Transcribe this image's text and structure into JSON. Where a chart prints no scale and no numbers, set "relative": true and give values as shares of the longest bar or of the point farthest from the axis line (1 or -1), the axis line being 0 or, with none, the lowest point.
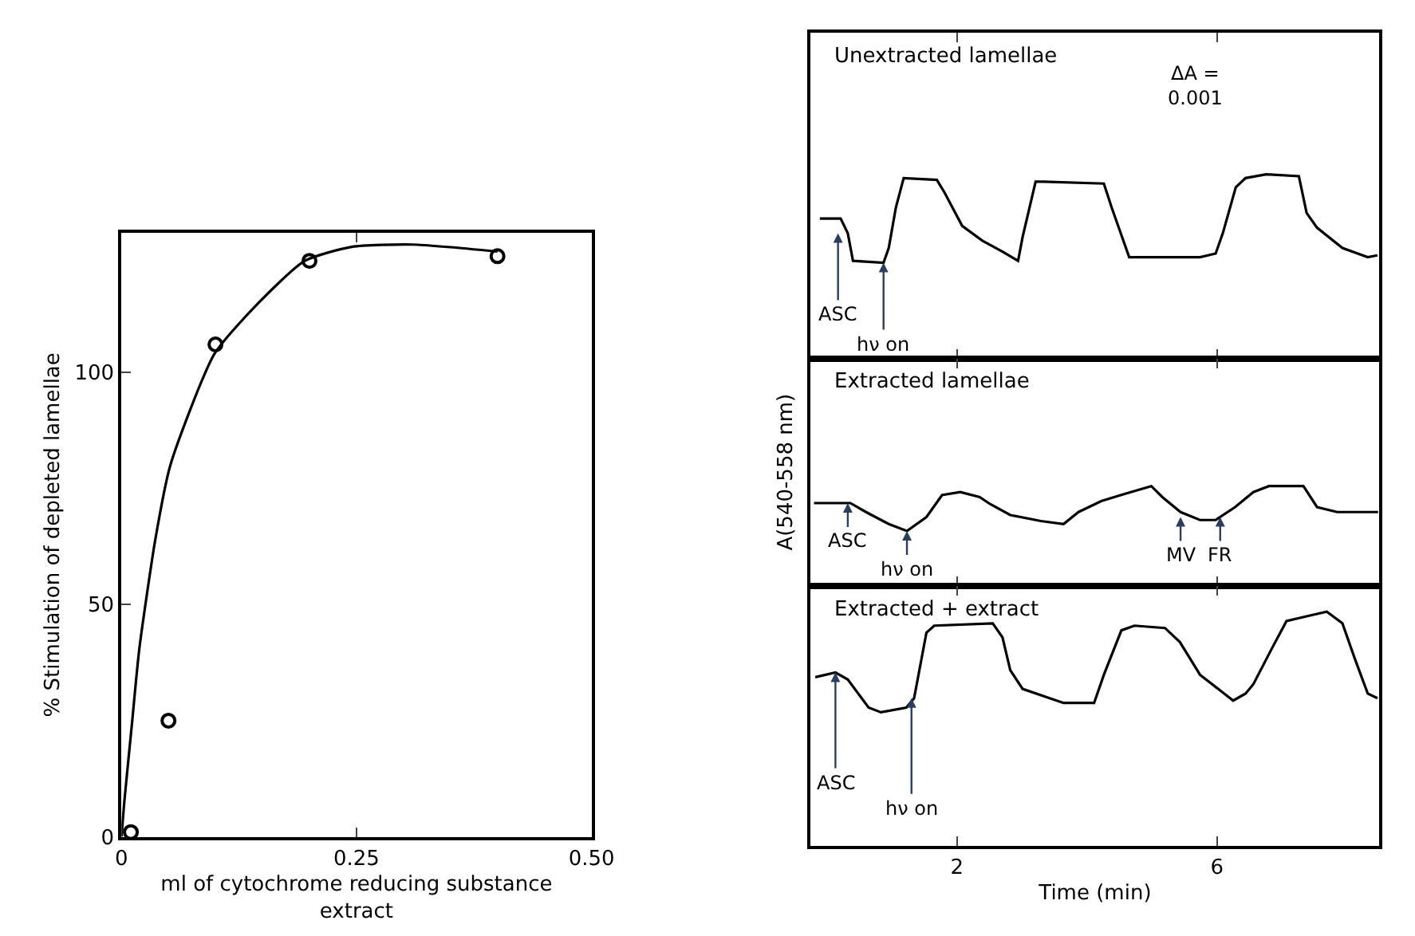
{
  "chart_data": [
    {
      "type": "scatter",
      "xlabel": "ml of cytochrome reducing substance extract",
      "ylabel": "% Stimulation of depleted lamellae",
      "xlim": [
        0,
        0.5
      ],
      "ylim": [
        0,
        130
      ],
      "xticks": [
        0,
        0.25,
        {
          "value": 0.5,
          "label": "0.50"
        }
      ],
      "yticks": [
        0,
        50,
        100
      ],
      "series": [
        {
          "type": "scatter",
          "marker": "circle",
          "color": "#000000",
          "x": [
            0.01,
            0.05,
            0.1,
            0.2,
            0.4
          ],
          "values": [
            1,
            25,
            106,
            124,
            125
          ]
        },
        {
          "type": "line",
          "marker": "none",
          "color": "#000000",
          "x": [
            0,
            0.003,
            0.011,
            0.019,
            0.036,
            0.052,
            0.099,
            0.146,
            0.195,
            0.245,
            0.31,
            0.4
          ],
          "values": [
            0,
            7.5,
            24,
            40.5,
            64,
            80,
            104,
            115,
            124,
            127,
            127.5,
            126
          ]
        }
      ]
    },
    {
      "type": "line",
      "relative": true,
      "title": "Unextracted lamellae",
      "xlim": [
        -0.25,
        8.5
      ],
      "xticks": [
        {
          "value": 2,
          "label": null
        },
        {
          "value": 6,
          "label": null
        }
      ],
      "tick_labels": false,
      "annotations": [
        "ΔA =\n0.001",
        {
          "text": "ASC",
          "x": 0.17,
          "y": 0.68
        },
        {
          "text": "hν on",
          "x": 0.87,
          "y": 0.52
        }
      ],
      "series": [
        {
          "color": "#000000",
          "x": [
            -0.11,
            0.21,
            0.32,
            0.4,
            0.87,
            0.95,
            1.06,
            1.18,
            1.69,
            1.81,
            2.08,
            2.39,
            2.7,
            2.94,
            3.01,
            3.21,
            3.33,
            4.26,
            4.38,
            4.46,
            4.65,
            5.2,
            5.74,
            5.98,
            6.09,
            6.29,
            6.44,
            6.76,
            7.26,
            7.38,
            7.54,
            7.93,
            8.32,
            8.47
          ],
          "values": [
            0.76,
            0.76,
            0.68,
            0.53,
            0.52,
            0.6,
            0.82,
            0.98,
            0.97,
            0.9,
            0.72,
            0.64,
            0.58,
            0.53,
            0.66,
            0.96,
            0.96,
            0.95,
            0.82,
            0.74,
            0.55,
            0.55,
            0.55,
            0.57,
            0.68,
            0.93,
            0.98,
            1,
            0.99,
            0.79,
            0.71,
            0.6,
            0.55,
            0.56
          ]
        }
      ]
    },
    {
      "type": "line",
      "relative": true,
      "title": "Extracted lamellae",
      "ylabel": "A(540-558 nm)",
      "xlim": [
        -0.25,
        8.5
      ],
      "xticks": [
        {
          "value": 2,
          "label": null
        },
        {
          "value": 6,
          "label": null
        }
      ],
      "tick_labels": false,
      "annotations": [
        {
          "text": "ASC",
          "x": 0.32,
          "y": 0.83
        },
        {
          "text": "hν on",
          "x": 1.23,
          "y": 0.55
        },
        {
          "text": "MV",
          "x": 5.44,
          "y": 0.69
        },
        {
          "text": "FR",
          "x": 6.05,
          "y": 0.69
        }
      ],
      "series": [
        {
          "color": "#000000",
          "x": [
            -0.2,
            0.36,
            0.6,
            0.95,
            1.23,
            1.53,
            1.77,
            2.05,
            2.35,
            2.51,
            2.82,
            3.29,
            3.64,
            3.87,
            4.22,
            4.57,
            4.99,
            5.16,
            5.44,
            5.74,
            5.98,
            6.28,
            6.56,
            6.8,
            7.33,
            7.54,
            7.85,
            8.48
          ],
          "values": [
            0.83,
            0.83,
            0.74,
            0.62,
            0.55,
            0.69,
            0.91,
            0.94,
            0.89,
            0.82,
            0.71,
            0.65,
            0.62,
            0.74,
            0.85,
            0.92,
            1,
            0.89,
            0.74,
            0.66,
            0.66,
            0.79,
            0.94,
            1,
            1,
            0.79,
            0.74,
            0.74
          ]
        }
      ]
    },
    {
      "type": "line",
      "relative": true,
      "title": "Extracted + extract",
      "xlabel": "Time (min)",
      "xlim": [
        -0.25,
        8.5
      ],
      "xticks": [
        2,
        6
      ],
      "tick_labels": "x",
      "annotations": [
        {
          "text": "ASC",
          "x": 0.13,
          "y": 0.74
        },
        {
          "text": "hν on",
          "x": 1.3,
          "y": 0.63
        }
      ],
      "series": [
        {
          "color": "#000000",
          "x": [
            -0.18,
            0.13,
            0.32,
            0.64,
            0.83,
            1.22,
            1.34,
            1.53,
            1.65,
            2.55,
            2.7,
            2.82,
            3.01,
            3.64,
            4.11,
            4.26,
            4.53,
            4.73,
            5.2,
            5.43,
            5.74,
            6.25,
            6.44,
            6.56,
            6.84,
            7.07,
            7.38,
            7.69,
            7.93,
            8.12,
            8.32,
            8.47
          ],
          "values": [
            0.72,
            0.74,
            0.71,
            0.59,
            0.57,
            0.59,
            0.63,
            0.91,
            0.94,
            0.95,
            0.89,
            0.75,
            0.67,
            0.61,
            0.61,
            0.73,
            0.92,
            0.94,
            0.93,
            0.87,
            0.73,
            0.62,
            0.65,
            0.69,
            0.84,
            0.96,
            0.98,
            1,
            0.95,
            0.8,
            0.65,
            0.63
          ]
        }
      ]
    }
  ]
}
